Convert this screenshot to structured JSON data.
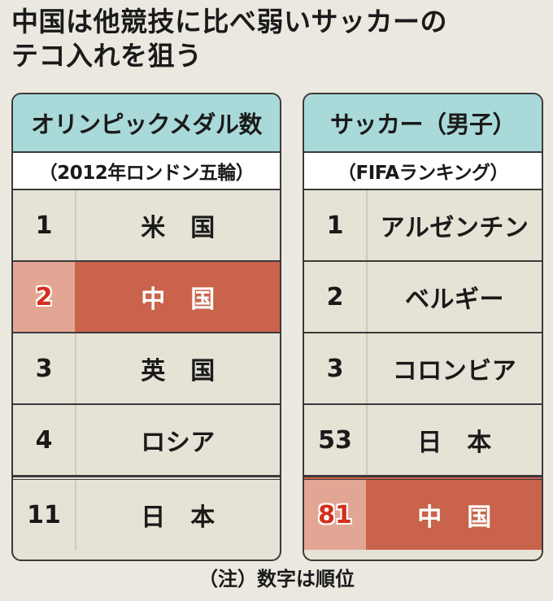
{
  "title": {
    "line1": "中国は他競技に比べ弱いサッカーの",
    "line2": "テコ入れを狙う"
  },
  "olympics": {
    "header": "オリンピックメダル数",
    "subheader": "（2012年ロンドン五輪）",
    "rows": [
      {
        "rank": "1",
        "country": "米　国"
      },
      {
        "rank": "2",
        "country": "中　国"
      },
      {
        "rank": "3",
        "country": "英　国"
      },
      {
        "rank": "4",
        "country": "ロシア"
      },
      {
        "rank": "11",
        "country": "日　本"
      }
    ]
  },
  "soccer": {
    "header": "サッカー（男子）",
    "subheader": "（FIFAランキング）",
    "rows": [
      {
        "rank": "1",
        "country": "アルゼンチン"
      },
      {
        "rank": "2",
        "country": "ベルギー"
      },
      {
        "rank": "3",
        "country": "コロンビア"
      },
      {
        "rank": "53",
        "country": "日　本"
      },
      {
        "rank": "81",
        "country": "中　国"
      }
    ]
  },
  "note": "（注）数字は順位",
  "colors": {
    "header_bg": "#a9dad9",
    "highlight": "#c9634b",
    "highlight_rank": "#d2301e"
  }
}
